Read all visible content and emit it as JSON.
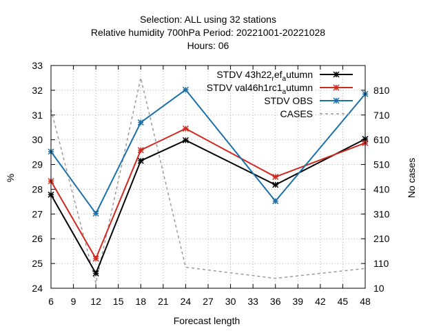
{
  "chart_data": {
    "type": "line",
    "title_lines": [
      "Selection: ALL using    32 stations",
      "Relative humidity 700hPa   Period: 20221001-20221028",
      "Hours:  06"
    ],
    "xlabel": "Forecast length",
    "ylabel": "%",
    "y2label": "No cases",
    "xlim": [
      6,
      48
    ],
    "ylim": [
      24,
      33
    ],
    "y2lim": [
      10,
      910
    ],
    "x_ticks": [
      6,
      9,
      12,
      15,
      18,
      21,
      24,
      27,
      30,
      33,
      36,
      39,
      42,
      45,
      48
    ],
    "y_ticks": [
      24,
      25,
      26,
      27,
      28,
      29,
      30,
      31,
      32,
      33
    ],
    "y2_ticks": [
      10,
      110,
      210,
      310,
      410,
      510,
      610,
      710,
      810
    ],
    "grid": true,
    "legend_position": "top-right",
    "series": [
      {
        "name": "STDV 43h22_ref_autumn",
        "legend_parts": [
          [
            "STDV 43h22",
            "base"
          ],
          [
            "r",
            "sub"
          ],
          [
            "ef",
            "base"
          ],
          [
            "a",
            "sub"
          ],
          [
            "utumn",
            "base"
          ]
        ],
        "color": "#000000",
        "style": "solid",
        "marker": "star",
        "axis": "y",
        "x": [
          6,
          12,
          18,
          24,
          36,
          48
        ],
        "values": [
          27.78,
          24.6,
          29.15,
          29.98,
          28.18,
          30.03
        ]
      },
      {
        "name": "STDV val46h1rc1_autumn",
        "legend_parts": [
          [
            "STDV val46h1rc1",
            "base"
          ],
          [
            "a",
            "sub"
          ],
          [
            "utumn",
            "base"
          ]
        ],
        "color": "#d0281e",
        "style": "solid",
        "marker": "star",
        "axis": "y",
        "x": [
          6,
          12,
          18,
          24,
          36,
          48
        ],
        "values": [
          28.33,
          25.2,
          29.58,
          30.45,
          28.5,
          29.87
        ]
      },
      {
        "name": "STDV OBS",
        "legend_parts": [
          [
            "STDV OBS",
            "base"
          ]
        ],
        "color": "#1a70a8",
        "style": "solid",
        "marker": "star",
        "axis": "y",
        "x": [
          6,
          12,
          18,
          24,
          36,
          48
        ],
        "values": [
          29.52,
          27.02,
          30.7,
          32.02,
          27.52,
          31.85
        ]
      },
      {
        "name": "CASES",
        "legend_parts": [
          [
            "CASES",
            "base"
          ]
        ],
        "color": "#999999",
        "style": "dashed",
        "marker": "none",
        "axis": "y2",
        "x": [
          6,
          12,
          18,
          24,
          36,
          48
        ],
        "values": [
          732,
          30,
          860,
          95,
          50,
          90
        ]
      }
    ]
  }
}
